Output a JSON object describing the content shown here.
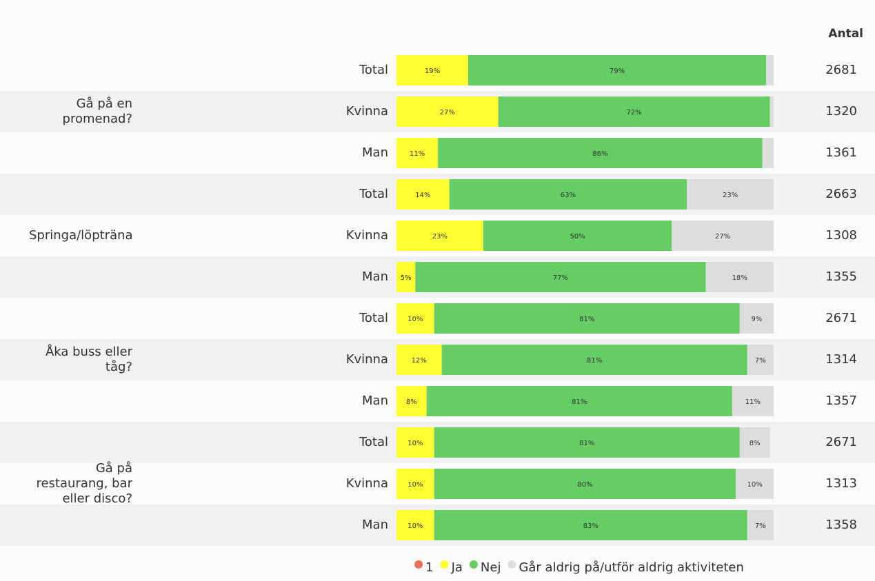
{
  "chart_data": {
    "type": "stacked-bar-horizontal",
    "groups": [
      {
        "name": "Gå på en promenad?",
        "categories": [
          "Total",
          "Kvinna",
          "Man"
        ]
      },
      {
        "name": "Springa/löpträna",
        "categories": [
          "Total",
          "Kvinna",
          "Man"
        ]
      },
      {
        "name": "Åka buss eller tåg?",
        "categories": [
          "Total",
          "Kvinna",
          "Man"
        ]
      },
      {
        "name": "Gå på restaurang, bar eller disco?",
        "categories": [
          "Total",
          "Kvinna",
          "Man"
        ]
      }
    ],
    "xlim": [
      0,
      100
    ],
    "series": [
      {
        "name": "1",
        "color": "#e8715a",
        "values": [
          0,
          0,
          0,
          0,
          0,
          0,
          0,
          0,
          0,
          0,
          0,
          0
        ]
      },
      {
        "name": "Ja",
        "color": "#ffff33",
        "values": [
          19,
          27,
          11,
          14,
          23,
          5,
          10,
          12,
          8,
          10,
          10,
          10
        ],
        "value_labels": [
          "19%",
          "27%",
          "11%",
          "14%",
          "23%",
          "5%",
          "10%",
          "12%",
          "8%",
          "10%",
          "10%",
          "10%"
        ]
      },
      {
        "name": "Nej",
        "color": "#66cc66",
        "values": [
          79,
          72,
          86,
          63,
          50,
          77,
          81,
          81,
          81,
          81,
          80,
          83
        ],
        "value_labels": [
          "79%",
          "72%",
          "86%",
          "63%",
          "50%",
          "77%",
          "81%",
          "81%",
          "81%",
          "81%",
          "80%",
          "83%"
        ]
      },
      {
        "name": "Går aldrig på/utför aldrig aktiviteten",
        "color": "#dddddd",
        "values": [
          2,
          1,
          3,
          23,
          27,
          18,
          9,
          7,
          11,
          8,
          10,
          7
        ],
        "value_labels": [
          null,
          null,
          null,
          "23%",
          "27%",
          "18%",
          "9%",
          "7%",
          "11%",
          "8%",
          "10%",
          "7%"
        ]
      }
    ],
    "antal": {
      "title": "Antal",
      "values": [
        2681,
        1320,
        1361,
        2663,
        1308,
        1355,
        2671,
        1314,
        1357,
        2671,
        1313,
        1358
      ]
    }
  }
}
